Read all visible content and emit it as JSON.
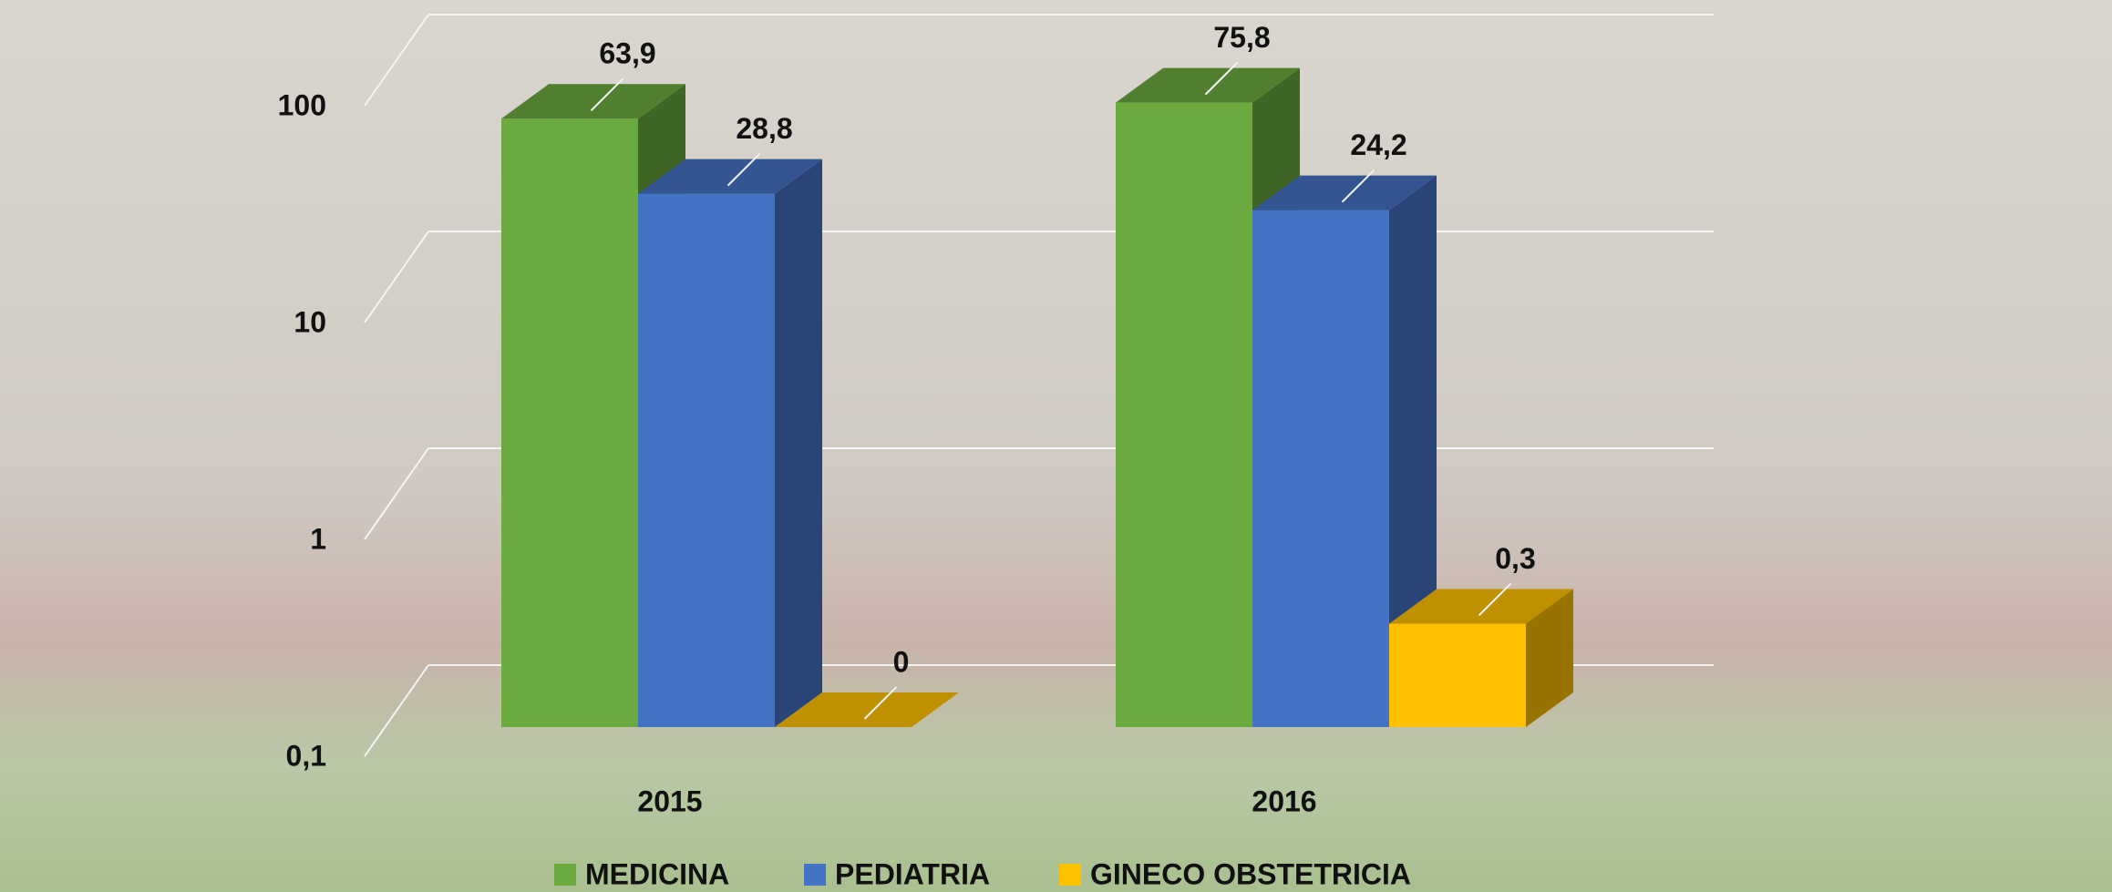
{
  "chart_data": {
    "type": "bar3d",
    "categories": [
      "2015",
      "2016"
    ],
    "series": [
      {
        "name": "MEDICINA",
        "color": "#6aaa3f",
        "values": [
          63.9,
          75.8
        ],
        "value_labels": [
          "63,9",
          "75,8"
        ]
      },
      {
        "name": "PEDIATRIA",
        "color": "#4472c4",
        "values": [
          28.8,
          24.2
        ],
        "value_labels": [
          "28,8",
          "24,2"
        ]
      },
      {
        "name": "GINECO OBSTETRICIA",
        "color": "#ffc000",
        "values": [
          0,
          0.3
        ],
        "value_labels": [
          "0",
          "0,3"
        ]
      }
    ],
    "log_scale": true,
    "ylim": [
      0.1,
      100
    ],
    "yticks": [
      {
        "value": 0.1,
        "label": "0,1"
      },
      1,
      10,
      100
    ],
    "grid": true,
    "legend": "bottom"
  }
}
